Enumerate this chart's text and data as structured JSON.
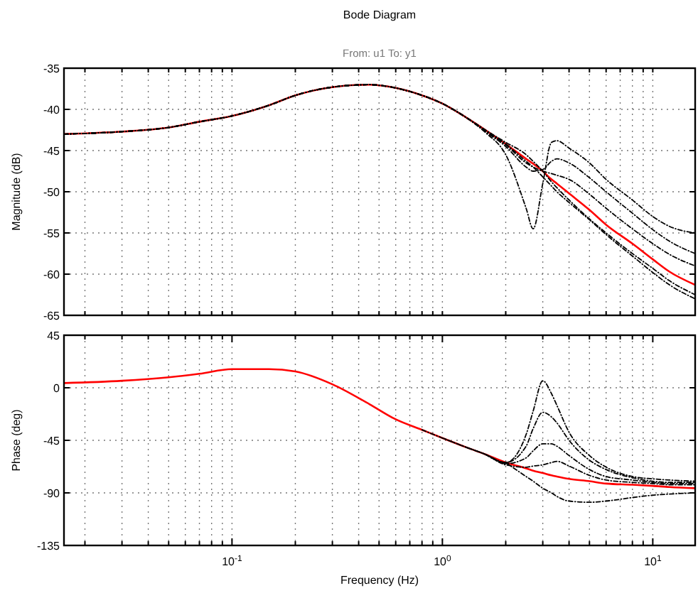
{
  "chart_data": [
    {
      "type": "line",
      "title": "Bode Diagram",
      "subtitle": "From: u1  To: y1",
      "ylabel": "Magnitude (dB)",
      "log": "x",
      "grid": true,
      "tick_labels": "y",
      "marker": "none",
      "xlim": [
        0.0159,
        15.9
      ],
      "ylim": [
        -65,
        -35
      ],
      "yticks": [
        -65,
        -60,
        -55,
        -50,
        -45,
        -40,
        -35
      ],
      "xticks": [
        {
          "value": 0.02,
          "label": null
        },
        {
          "value": 0.03,
          "label": null
        },
        {
          "value": 0.04,
          "label": null
        },
        {
          "value": 0.05,
          "label": null
        },
        {
          "value": 0.06,
          "label": null
        },
        {
          "value": 0.07,
          "label": null
        },
        {
          "value": 0.08,
          "label": null
        },
        {
          "value": 0.09,
          "label": null
        },
        {
          "value": 0.1,
          "label": null
        },
        {
          "value": 0.2,
          "label": null
        },
        {
          "value": 0.3,
          "label": null
        },
        {
          "value": 0.4,
          "label": null
        },
        {
          "value": 0.5,
          "label": null
        },
        {
          "value": 0.6,
          "label": null
        },
        {
          "value": 0.7,
          "label": null
        },
        {
          "value": 0.8,
          "label": null
        },
        {
          "value": 0.9,
          "label": null
        },
        {
          "value": 1,
          "label": null
        },
        {
          "value": 2,
          "label": null
        },
        {
          "value": 3,
          "label": null
        },
        {
          "value": 4,
          "label": null
        },
        {
          "value": 5,
          "label": null
        },
        {
          "value": 6,
          "label": null
        },
        {
          "value": 7,
          "label": null
        },
        {
          "value": 8,
          "label": null
        },
        {
          "value": 9,
          "label": null
        },
        {
          "value": 10,
          "label": null
        }
      ],
      "x": [
        0.0159,
        0.03,
        0.05,
        0.07,
        0.1,
        0.15,
        0.2,
        0.3,
        0.45,
        0.6,
        0.8,
        1,
        1.3,
        1.6,
        2,
        2.5,
        2.7,
        3,
        3.3,
        3.5,
        4,
        5,
        6,
        8,
        10,
        12,
        15.9
      ],
      "series": [
        {
          "color": "#000000",
          "line_style": "dashed",
          "values": [
            -43,
            -42.7,
            -42.2,
            -41.5,
            -40.8,
            -39.5,
            -38.3,
            -37.3,
            -37,
            -37.4,
            -38.3,
            -39.3,
            -41,
            -42.8,
            -45.5,
            -52,
            -54.5,
            -49,
            -44,
            -43.8,
            -44.7,
            -46.5,
            -48.5,
            -51,
            -53,
            -54.2,
            -55
          ]
        },
        {
          "color": "#000000",
          "line_style": "dashed",
          "values": [
            -43,
            -42.7,
            -42.2,
            -41.5,
            -40.8,
            -39.5,
            -38.3,
            -37.3,
            -37,
            -37.4,
            -38.3,
            -39.3,
            -41,
            -42.7,
            -44.5,
            -47,
            -47.5,
            -47.3,
            -46.3,
            -46,
            -46.5,
            -48.3,
            -50,
            -52.6,
            -54.6,
            -56,
            -57.5
          ]
        },
        {
          "color": "#000000",
          "line_style": "dashed",
          "values": [
            -43,
            -42.7,
            -42.2,
            -41.5,
            -40.8,
            -39.5,
            -38.3,
            -37.3,
            -37,
            -37.4,
            -38.3,
            -39.3,
            -41,
            -42.6,
            -44.3,
            -46.5,
            -47,
            -47.5,
            -47.8,
            -48,
            -48.5,
            -50.3,
            -52,
            -54.5,
            -56.3,
            -57.6,
            -59
          ]
        },
        {
          "color": "#000000",
          "line_style": "dashed",
          "values": [
            -43,
            -42.7,
            -42.2,
            -41.5,
            -40.8,
            -39.5,
            -38.3,
            -37.3,
            -37,
            -37.4,
            -38.3,
            -39.3,
            -41,
            -42.5,
            -44,
            -45.5,
            -46.3,
            -47.5,
            -48.8,
            -49.5,
            -51,
            -53.3,
            -55,
            -57.5,
            -59.3,
            -60.8,
            -62.5
          ]
        },
        {
          "color": "#000000",
          "line_style": "dashed",
          "values": [
            -43,
            -42.7,
            -42.2,
            -41.5,
            -40.8,
            -39.5,
            -38.3,
            -37.3,
            -37,
            -37.4,
            -38.3,
            -39.3,
            -41,
            -42.5,
            -44.2,
            -46.3,
            -47,
            -48.2,
            -49.3,
            -50,
            -51.3,
            -53.4,
            -55.2,
            -57.8,
            -59.8,
            -61.3,
            -63
          ]
        },
        {
          "color": "#ff0000",
          "line_style": "solid",
          "values": [
            -43,
            -42.7,
            -42.2,
            -41.5,
            -40.8,
            -39.5,
            -38.3,
            -37.3,
            -37,
            -37.4,
            -38.3,
            -39.3,
            -41,
            -42.5,
            -44.2,
            -46,
            -46.6,
            -47.5,
            -48.5,
            -49,
            -50.2,
            -52.2,
            -54,
            -56.3,
            -58.2,
            -59.7,
            -61.3
          ]
        }
      ]
    },
    {
      "type": "line",
      "xlabel": "Frequency  (Hz)",
      "ylabel": "Phase (deg)",
      "log": "x",
      "grid": true,
      "marker": "none",
      "xlim": [
        0.0159,
        15.9
      ],
      "ylim": [
        -135,
        45
      ],
      "yticks": [
        -135,
        -90,
        -45,
        0,
        45
      ],
      "xticks": [
        {
          "value": 0.02,
          "label": null
        },
        {
          "value": 0.03,
          "label": null
        },
        {
          "value": 0.04,
          "label": null
        },
        {
          "value": 0.05,
          "label": null
        },
        {
          "value": 0.06,
          "label": null
        },
        {
          "value": 0.07,
          "label": null
        },
        {
          "value": 0.08,
          "label": null
        },
        {
          "value": 0.09,
          "label": null
        },
        {
          "value": 0.1,
          "label": "10$^{-1}$"
        },
        {
          "value": 0.2,
          "label": null
        },
        {
          "value": 0.3,
          "label": null
        },
        {
          "value": 0.4,
          "label": null
        },
        {
          "value": 0.5,
          "label": null
        },
        {
          "value": 0.6,
          "label": null
        },
        {
          "value": 0.7,
          "label": null
        },
        {
          "value": 0.8,
          "label": null
        },
        {
          "value": 0.9,
          "label": null
        },
        {
          "value": 1,
          "label": "10$^{0}$"
        },
        {
          "value": 2,
          "label": null
        },
        {
          "value": 3,
          "label": null
        },
        {
          "value": 4,
          "label": null
        },
        {
          "value": 5,
          "label": null
        },
        {
          "value": 6,
          "label": null
        },
        {
          "value": 7,
          "label": null
        },
        {
          "value": 8,
          "label": null
        },
        {
          "value": 9,
          "label": null
        },
        {
          "value": 10,
          "label": "10$^{1}$"
        }
      ],
      "x": [
        0.0159,
        0.03,
        0.05,
        0.07,
        0.1,
        0.15,
        0.2,
        0.3,
        0.45,
        0.6,
        0.8,
        1,
        1.3,
        1.6,
        2,
        2.5,
        2.7,
        3,
        3.3,
        3.5,
        4,
        5,
        6,
        8,
        10,
        12,
        15.9
      ],
      "series": [
        {
          "color": "#000000",
          "line_style": "dashed",
          "values": [
            null,
            null,
            null,
            null,
            null,
            null,
            null,
            null,
            null,
            null,
            null,
            null,
            null,
            -57,
            -64,
            -40,
            -20,
            6,
            -5,
            -15,
            -38,
            -58,
            -68,
            -76,
            -78,
            -79,
            -80
          ]
        },
        {
          "color": "#000000",
          "line_style": "dashed",
          "values": [
            null,
            null,
            null,
            null,
            null,
            null,
            null,
            null,
            null,
            null,
            null,
            null,
            -51,
            -57,
            -64,
            -50,
            -35,
            -21,
            -25,
            -30,
            -45,
            -62,
            -70,
            -77,
            -80,
            -81,
            -81
          ]
        },
        {
          "color": "#000000",
          "line_style": "dashed",
          "values": [
            null,
            null,
            null,
            null,
            null,
            null,
            null,
            null,
            null,
            null,
            null,
            -43,
            -51,
            -57,
            -65,
            -60,
            -54,
            -48,
            -48,
            -50,
            -58,
            -70,
            -76,
            -79,
            -81,
            -82,
            -82
          ]
        },
        {
          "color": "#000000",
          "line_style": "dashed",
          "values": [
            null,
            null,
            null,
            null,
            null,
            null,
            null,
            null,
            null,
            null,
            -36,
            -43,
            -51,
            -57,
            -66,
            -68,
            -67,
            -66,
            -64,
            -63,
            -67,
            -75,
            -79,
            -81,
            -82,
            -83,
            -83
          ]
        },
        {
          "color": "#000000",
          "line_style": "dashed",
          "values": [
            null,
            null,
            null,
            null,
            null,
            null,
            null,
            null,
            null,
            null,
            null,
            null,
            null,
            null,
            -64,
            -76,
            -80,
            -86,
            -90,
            -93,
            -97,
            -98,
            -97,
            -94,
            -92,
            -91,
            -90
          ]
        },
        {
          "color": "#ff0000",
          "line_style": "solid",
          "values": [
            4,
            6,
            9,
            12,
            16,
            16,
            14,
            3,
            -14,
            -27,
            -36,
            -43,
            -51,
            -57,
            -64,
            -69,
            -71,
            -73,
            -75,
            -76,
            -78,
            -80,
            -82,
            -83,
            -84,
            -85,
            -86
          ]
        }
      ]
    }
  ]
}
